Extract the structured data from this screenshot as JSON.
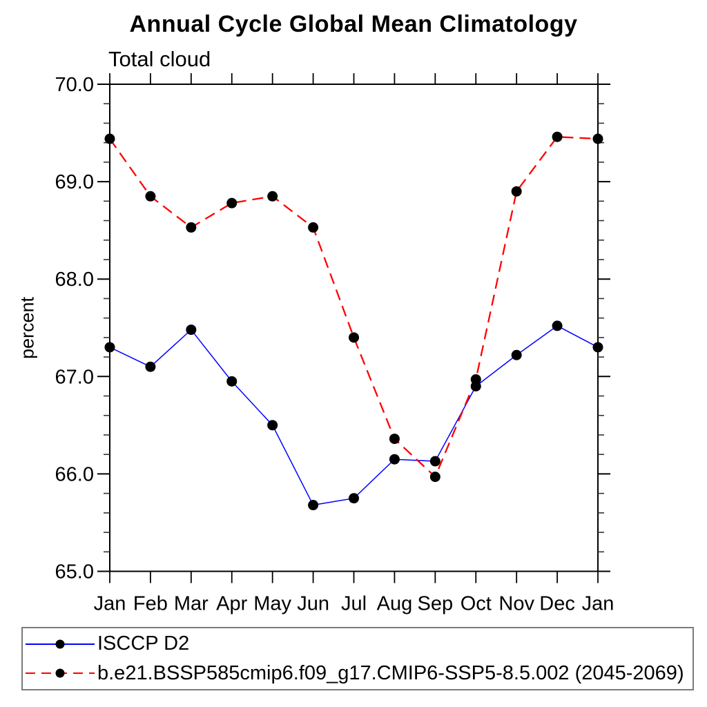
{
  "figure": {
    "title": "Annual Cycle Global Mean Climatology",
    "subtitle": "Total cloud",
    "y_axis_title": "percent"
  },
  "chart_data": {
    "type": "line",
    "title": "Annual Cycle Global Mean Climatology",
    "subtitle": "Total cloud",
    "xlabel": "",
    "ylabel": "percent",
    "categories": [
      "Jan",
      "Feb",
      "Mar",
      "Apr",
      "May",
      "Jun",
      "Jul",
      "Aug",
      "Sep",
      "Oct",
      "Nov",
      "Dec",
      "Jan"
    ],
    "ylim": [
      65.0,
      70.0
    ],
    "ytick_values": [
      65.0,
      66.0,
      67.0,
      68.0,
      69.0,
      70.0
    ],
    "ytick_labels": [
      "65.0",
      "66.0",
      "67.0",
      "68.0",
      "69.0",
      "70.0"
    ],
    "ytick_minor_step": 0.2,
    "grid": false,
    "legend_position": "bottom-left-box",
    "marker_color": "#000000",
    "series": [
      {
        "name": "ISCCP D2",
        "color": "#0000ff",
        "line_style": "solid",
        "marker": "filled-circle",
        "values": [
          67.3,
          67.1,
          67.48,
          66.95,
          66.5,
          65.68,
          65.75,
          66.15,
          66.13,
          66.9,
          67.22,
          67.52,
          67.3
        ]
      },
      {
        "name": "b.e21.BSSP585cmip6.f09_g17.CMIP6-SSP5-8.5.002 (2045-2069)",
        "color": "#ff0000",
        "line_style": "dashed",
        "marker": "filled-circle",
        "values": [
          69.44,
          68.85,
          68.53,
          68.78,
          68.85,
          68.53,
          67.4,
          66.36,
          65.97,
          66.97,
          68.9,
          69.46,
          69.44
        ]
      }
    ]
  }
}
